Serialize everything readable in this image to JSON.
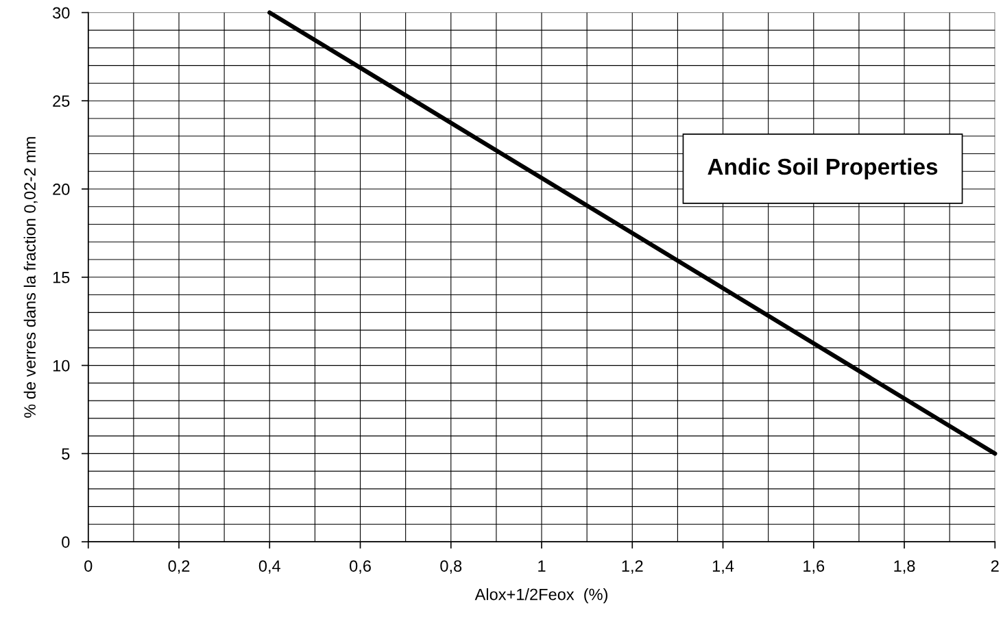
{
  "chart_data": {
    "type": "line",
    "xlabel": "Alox+1/2Feox  (%)",
    "ylabel": "% de verres dans la fraction 0,02-2 mm",
    "x": [
      0.4,
      2
    ],
    "series": [
      {
        "color": "#000000",
        "values": [
          30,
          5
        ]
      }
    ],
    "xlim": [
      0,
      2
    ],
    "ylim": [
      0,
      30
    ],
    "xticks": [
      0,
      {
        "value": 0.1,
        "label": null
      },
      {
        "value": 0.2,
        "label": "0,2"
      },
      {
        "value": 0.3,
        "label": null
      },
      {
        "value": 0.4,
        "label": "0,4"
      },
      {
        "value": 0.5,
        "label": null
      },
      {
        "value": 0.6,
        "label": "0,6"
      },
      {
        "value": 0.7,
        "label": null
      },
      {
        "value": 0.8,
        "label": "0,8"
      },
      {
        "value": 0.9,
        "label": null
      },
      1,
      {
        "value": 1.1,
        "label": null
      },
      {
        "value": 1.2,
        "label": "1,2"
      },
      {
        "value": 1.3,
        "label": null
      },
      {
        "value": 1.4,
        "label": "1,4"
      },
      {
        "value": 1.5,
        "label": null
      },
      {
        "value": 1.6,
        "label": "1,6"
      },
      {
        "value": 1.7,
        "label": null
      },
      {
        "value": 1.8,
        "label": "1,8"
      },
      {
        "value": 1.9,
        "label": null
      },
      2
    ],
    "yticks": [
      0,
      {
        "value": 1,
        "label": null
      },
      {
        "value": 2,
        "label": null
      },
      {
        "value": 3,
        "label": null
      },
      {
        "value": 4,
        "label": null
      },
      5,
      {
        "value": 6,
        "label": null
      },
      {
        "value": 7,
        "label": null
      },
      {
        "value": 8,
        "label": null
      },
      {
        "value": 9,
        "label": null
      },
      10,
      {
        "value": 11,
        "label": null
      },
      {
        "value": 12,
        "label": null
      },
      {
        "value": 13,
        "label": null
      },
      {
        "value": 14,
        "label": null
      },
      15,
      {
        "value": 16,
        "label": null
      },
      {
        "value": 17,
        "label": null
      },
      {
        "value": 18,
        "label": null
      },
      {
        "value": 19,
        "label": null
      },
      20,
      {
        "value": 21,
        "label": null
      },
      {
        "value": 22,
        "label": null
      },
      {
        "value": 23,
        "label": null
      },
      {
        "value": 24,
        "label": null
      },
      25,
      {
        "value": 26,
        "label": null
      },
      {
        "value": 27,
        "label": null
      },
      {
        "value": 28,
        "label": null
      },
      {
        "value": 29,
        "label": null
      },
      30
    ],
    "grid": true,
    "marker": "none",
    "line_style": "solid",
    "annotations": [
      "Andic Soil Properties"
    ]
  }
}
